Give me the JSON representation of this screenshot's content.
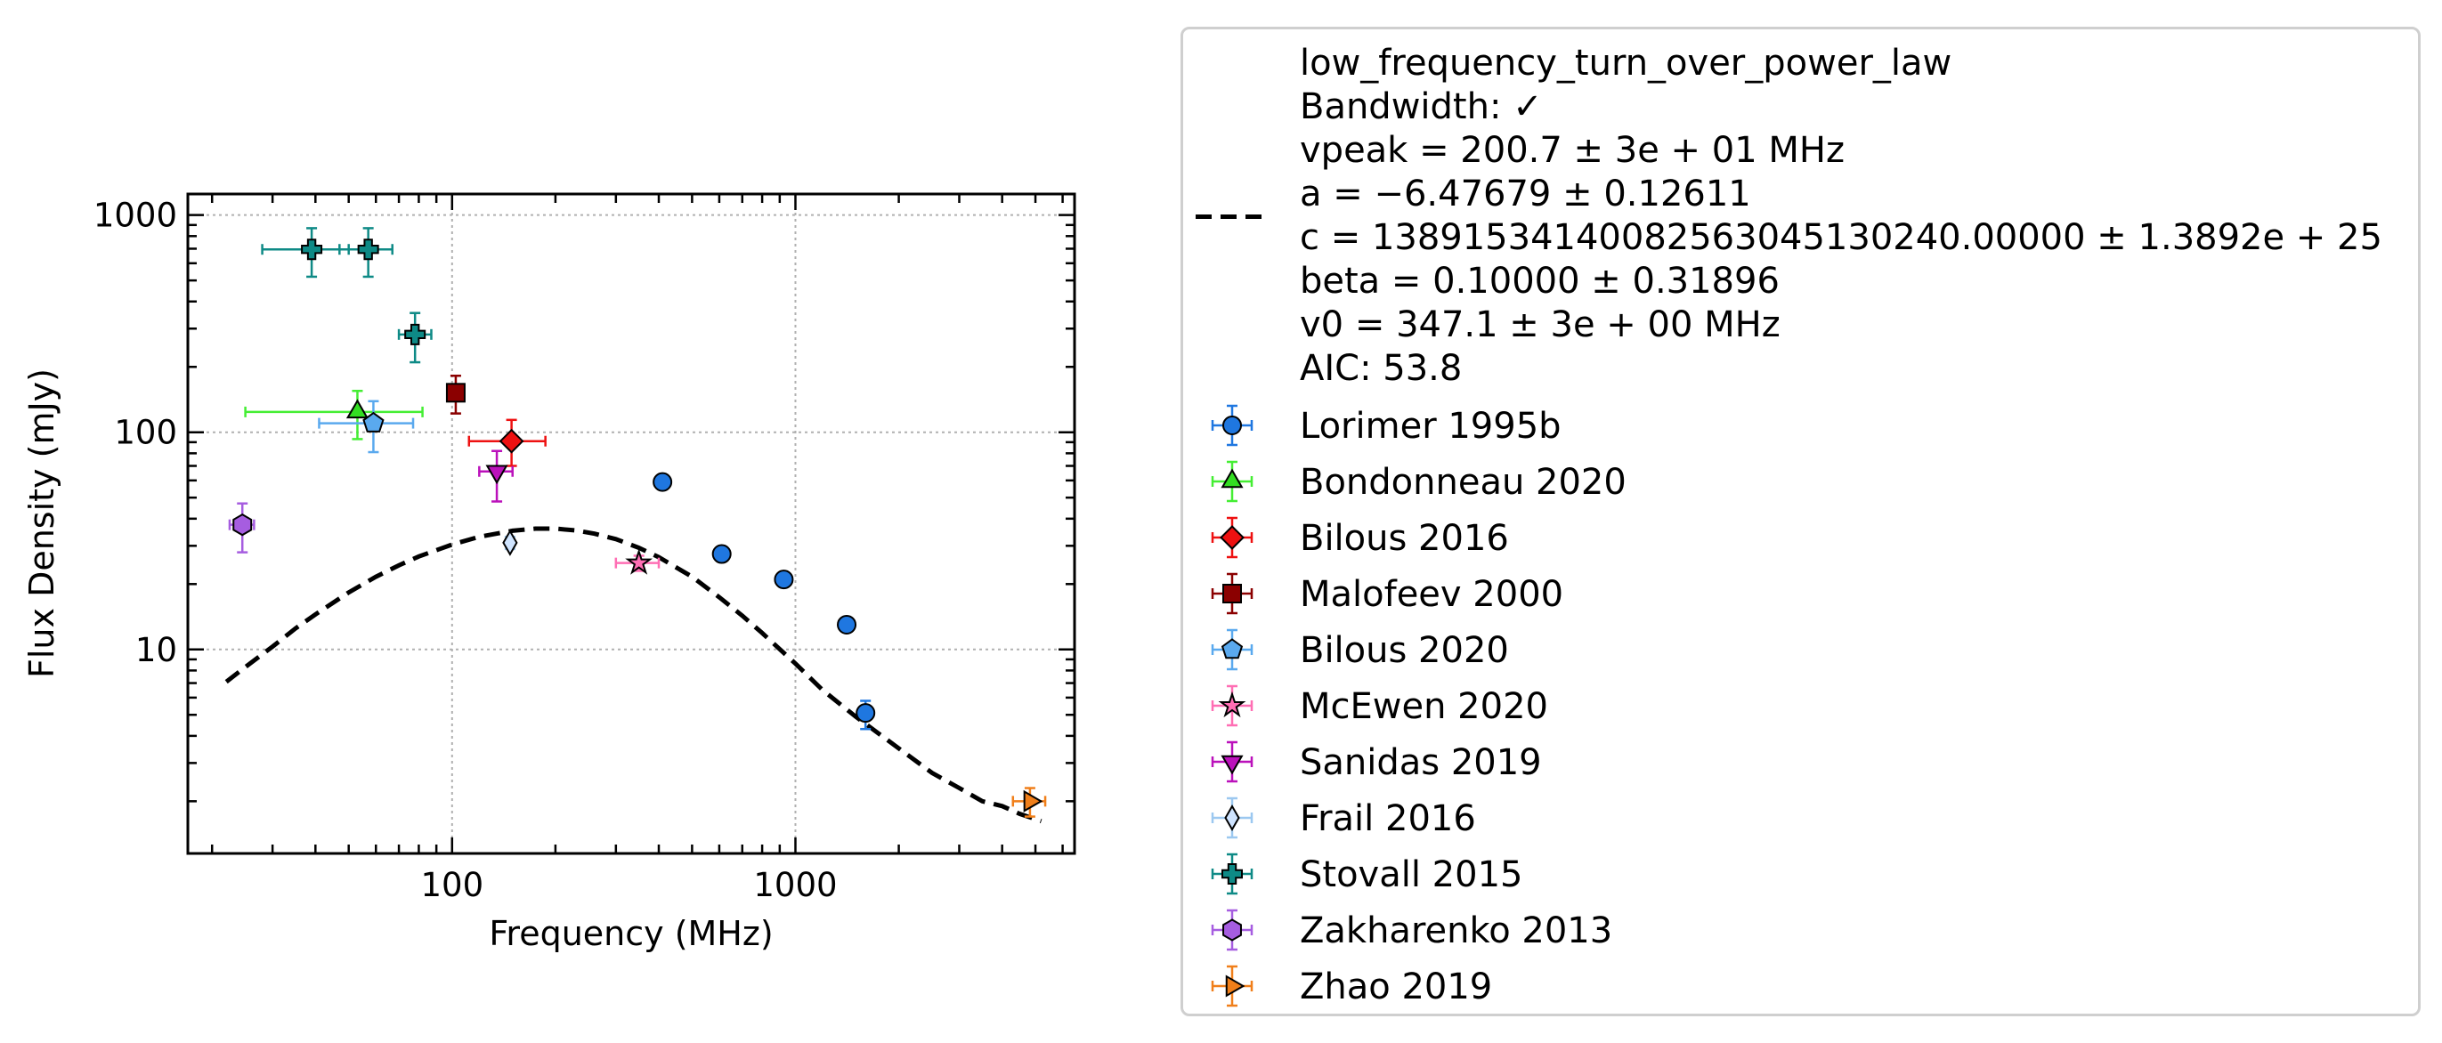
{
  "chart_data": {
    "type": "scatter",
    "xlabel": "Frequency (MHz)",
    "ylabel": "Flux Density (mJy)",
    "x_scale": "log",
    "y_scale": "log",
    "xlim": [
      17,
      6500
    ],
    "ylim": [
      1.15,
      1250
    ],
    "x_ticks": [
      {
        "value": 100,
        "label": "100"
      },
      {
        "value": 1000,
        "label": "1000"
      }
    ],
    "y_ticks": [
      {
        "value": 10,
        "label": "10"
      },
      {
        "value": 100,
        "label": "100"
      },
      {
        "value": 1000,
        "label": "1000"
      }
    ],
    "grid": true,
    "legend_position": "outside-right",
    "fit": {
      "model": "low_frequency_turn_over_power_law",
      "style": "dashed",
      "color": "#000000",
      "x": [
        22,
        25,
        30,
        35,
        40,
        50,
        60,
        70,
        80,
        100,
        120,
        150,
        175,
        200,
        230,
        260,
        300,
        350,
        400,
        500,
        600,
        700,
        800,
        1000,
        1200,
        1500,
        2000,
        2500,
        3000,
        3500,
        4000,
        4500,
        5200
      ],
      "y": [
        7.1,
        8.3,
        10.3,
        12.5,
        14.5,
        18.3,
        21.6,
        24.4,
        26.8,
        30.4,
        33.0,
        35.2,
        36.0,
        36.0,
        35.3,
        34.1,
        32.2,
        29.4,
        26.6,
        21.6,
        17.4,
        14.3,
        11.9,
        8.6,
        6.5,
        4.9,
        3.5,
        2.7,
        2.3,
        2.0,
        1.9,
        1.75,
        1.62
      ],
      "legend_lines": [
        "low_frequency_turn_over_power_law",
        "Bandwidth: ✓",
        "vpeak = 200.7 ± 3e + 01 MHz",
        "a = −6.47679 ± 0.12611",
        "c = 13891534140082563045130240.00000 ± 1.3892e + 25",
        "beta = 0.10000 ± 0.31896",
        "v0 = 347.1 ± 3e + 00 MHz",
        "AIC: 53.8"
      ]
    },
    "series": [
      {
        "name": "Lorimer 1995b",
        "marker": "circle",
        "color": "#1f77e0",
        "ecolor": "#1f77e0",
        "points": [
          {
            "x": 410,
            "y": 59,
            "ylo": 56,
            "yhi": 62
          },
          {
            "x": 610,
            "y": 27.5,
            "ylo": 26,
            "yhi": 29
          },
          {
            "x": 925,
            "y": 21,
            "ylo": 20,
            "yhi": 22
          },
          {
            "x": 1410,
            "y": 13,
            "ylo": 12.3,
            "yhi": 13.8
          },
          {
            "x": 1600,
            "y": 5.1,
            "ylo": 4.3,
            "yhi": 5.8
          }
        ]
      },
      {
        "name": "Bondonneau 2020",
        "marker": "triangle-up",
        "color": "#33dd22",
        "ecolor": "#44ee33",
        "points": [
          {
            "x": 53,
            "y": 124,
            "xlo": 25,
            "xhi": 82,
            "ylo": 93,
            "yhi": 155
          }
        ]
      },
      {
        "name": "Bilous 2016",
        "marker": "diamond",
        "color": "#ee1111",
        "ecolor": "#ee1111",
        "points": [
          {
            "x": 149,
            "y": 91,
            "xlo": 112,
            "xhi": 187,
            "ylo": 70,
            "yhi": 114
          }
        ]
      },
      {
        "name": "Malofeev 2000",
        "marker": "square",
        "color": "#8b0000",
        "ecolor": "#8b0000",
        "points": [
          {
            "x": 102.5,
            "y": 152,
            "ylo": 122,
            "yhi": 182
          }
        ]
      },
      {
        "name": "Bilous 2020",
        "marker": "pentagon",
        "color": "#5aa9ee",
        "ecolor": "#5aa9ee",
        "points": [
          {
            "x": 59,
            "y": 110,
            "xlo": 41,
            "xhi": 77,
            "ylo": 81,
            "yhi": 139
          }
        ]
      },
      {
        "name": "McEwen 2020",
        "marker": "star",
        "color": "#ff6eb4",
        "ecolor": "#ff6eb4",
        "points": [
          {
            "x": 350,
            "y": 25,
            "xlo": 300,
            "xhi": 400,
            "ylo": 23,
            "yhi": 27
          }
        ]
      },
      {
        "name": "Sanidas 2019",
        "marker": "triangle-down",
        "color": "#bb11bb",
        "ecolor": "#bb11bb",
        "points": [
          {
            "x": 135,
            "y": 66,
            "xlo": 120,
            "xhi": 150,
            "ylo": 48,
            "yhi": 82
          }
        ]
      },
      {
        "name": "Frail 2016",
        "marker": "thin-diamond",
        "color": "#cfe4ff",
        "ecolor": "#9cc8f0",
        "points": [
          {
            "x": 147.5,
            "y": 31,
            "ylo": 29,
            "yhi": 33
          }
        ]
      },
      {
        "name": "Stovall 2015",
        "marker": "plus",
        "color": "#0e8a86",
        "ecolor": "#0e8a86",
        "points": [
          {
            "x": 39,
            "y": 695,
            "xlo": 28,
            "xhi": 50,
            "ylo": 520,
            "yhi": 870
          },
          {
            "x": 57,
            "y": 695,
            "xlo": 47,
            "xhi": 67,
            "ylo": 520,
            "yhi": 870
          },
          {
            "x": 78,
            "y": 282,
            "xlo": 70,
            "xhi": 87,
            "ylo": 210,
            "yhi": 354
          }
        ]
      },
      {
        "name": "Zakharenko 2013",
        "marker": "hexagon",
        "color": "#a65de0",
        "ecolor": "#a65de0",
        "points": [
          {
            "x": 24.5,
            "y": 37.5,
            "xlo": 22.5,
            "xhi": 26.5,
            "ylo": 28,
            "yhi": 47
          }
        ]
      },
      {
        "name": "Zhao 2019",
        "marker": "triangle-right",
        "color": "#f07f1a",
        "ecolor": "#f07f1a",
        "points": [
          {
            "x": 4820,
            "y": 2.0,
            "xlo": 4300,
            "xhi": 5340,
            "ylo": 1.7,
            "yhi": 2.3
          }
        ]
      }
    ]
  }
}
